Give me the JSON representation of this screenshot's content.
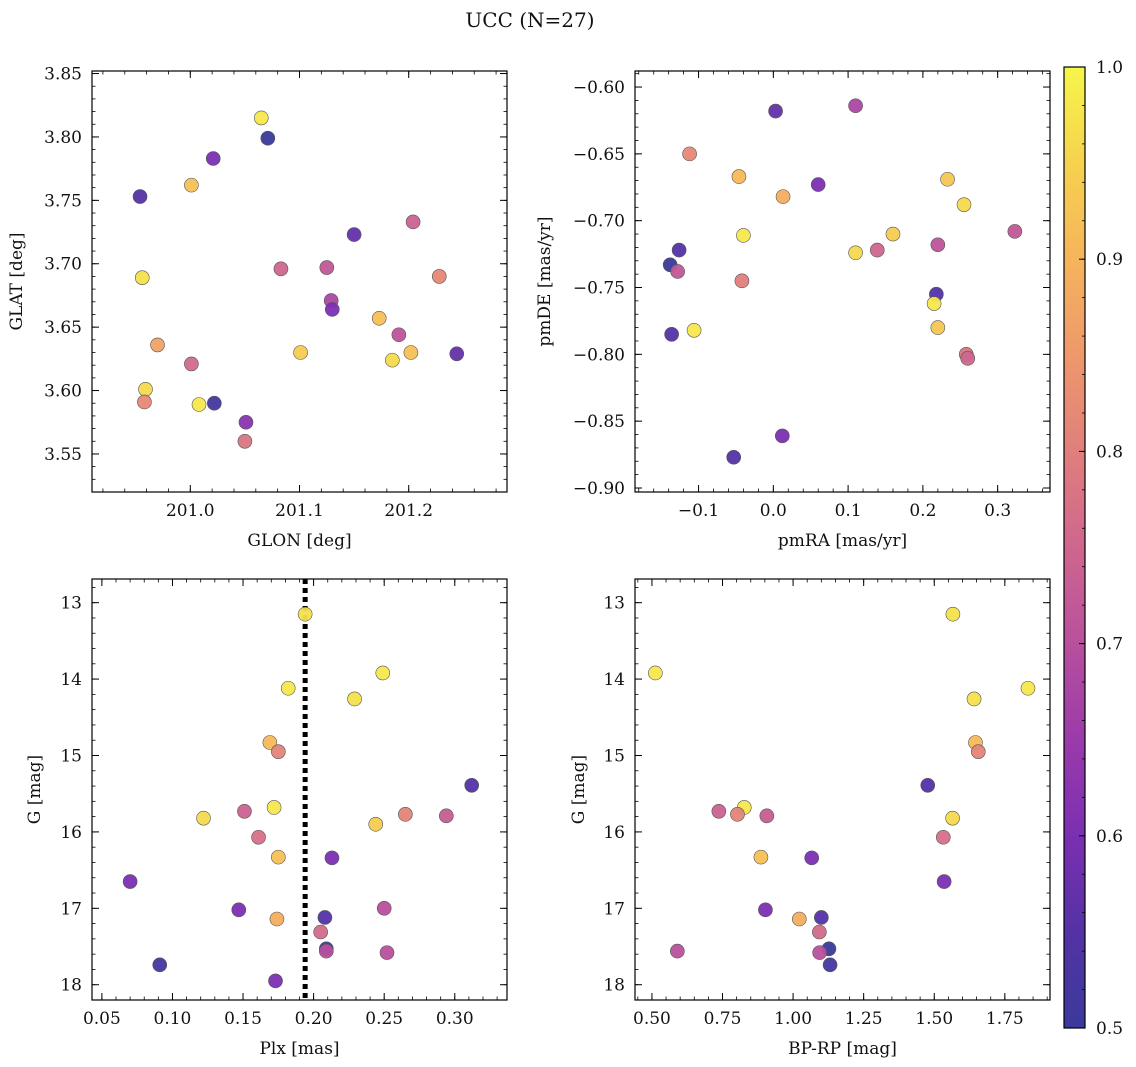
{
  "figure": {
    "title": "UCC (N=27)"
  },
  "colors": {
    "colormap": "plasma",
    "point_edge": "#555555",
    "plx_line": "#000000"
  },
  "chart_data": [
    {
      "type": "scatter",
      "xlabel": "GLON [deg]",
      "ylabel": "GLAT [deg]",
      "xlim": [
        200.91,
        201.29
      ],
      "ylim": [
        3.52,
        3.852
      ],
      "xticks": [
        201.0,
        201.1,
        201.2
      ],
      "xticklabels": [
        "201.0",
        "201.1",
        "201.2"
      ],
      "yticks": [
        3.55,
        3.6,
        3.65,
        3.7,
        3.75,
        3.8,
        3.85
      ],
      "yticklabels": [
        "3.55",
        "3.60",
        "3.65",
        "3.70",
        "3.75",
        "3.80",
        "3.85"
      ],
      "points": [
        {
          "x": 200.954,
          "y": 3.753,
          "c": 0.55
        },
        {
          "x": 201.021,
          "y": 3.783,
          "c": 0.6
        },
        {
          "x": 201.065,
          "y": 3.815,
          "c": 0.98
        },
        {
          "x": 201.071,
          "y": 3.799,
          "c": 0.5
        },
        {
          "x": 201.001,
          "y": 3.762,
          "c": 0.92
        },
        {
          "x": 200.956,
          "y": 3.689,
          "c": 0.97
        },
        {
          "x": 201.083,
          "y": 3.696,
          "c": 0.75
        },
        {
          "x": 201.125,
          "y": 3.697,
          "c": 0.72
        },
        {
          "x": 201.15,
          "y": 3.723,
          "c": 0.57
        },
        {
          "x": 201.204,
          "y": 3.733,
          "c": 0.74
        },
        {
          "x": 201.228,
          "y": 3.69,
          "c": 0.82
        },
        {
          "x": 201.129,
          "y": 3.671,
          "c": 0.68
        },
        {
          "x": 201.13,
          "y": 3.664,
          "c": 0.6
        },
        {
          "x": 201.173,
          "y": 3.657,
          "c": 0.92
        },
        {
          "x": 201.191,
          "y": 3.644,
          "c": 0.71
        },
        {
          "x": 200.97,
          "y": 3.636,
          "c": 0.87
        },
        {
          "x": 201.101,
          "y": 3.63,
          "c": 0.94
        },
        {
          "x": 201.202,
          "y": 3.63,
          "c": 0.92
        },
        {
          "x": 201.185,
          "y": 3.624,
          "c": 0.96
        },
        {
          "x": 201.244,
          "y": 3.629,
          "c": 0.57
        },
        {
          "x": 201.001,
          "y": 3.621,
          "c": 0.76
        },
        {
          "x": 200.959,
          "y": 3.601,
          "c": 0.96
        },
        {
          "x": 200.958,
          "y": 3.591,
          "c": 0.82
        },
        {
          "x": 201.008,
          "y": 3.589,
          "c": 0.98
        },
        {
          "x": 201.022,
          "y": 3.59,
          "c": 0.52
        },
        {
          "x": 201.051,
          "y": 3.575,
          "c": 0.62
        },
        {
          "x": 201.05,
          "y": 3.56,
          "c": 0.78
        }
      ]
    },
    {
      "type": "scatter",
      "xlabel": "pmRA [mas/yr]",
      "ylabel": "pmDE [mas/yr]",
      "xlim": [
        -0.185,
        0.37
      ],
      "ylim": [
        -0.903,
        -0.588
      ],
      "xticks": [
        -0.1,
        0.0,
        0.1,
        0.2,
        0.3
      ],
      "xticklabels": [
        "−0.1",
        "0.0",
        "0.1",
        "0.2",
        "0.3"
      ],
      "yticks": [
        -0.9,
        -0.85,
        -0.8,
        -0.75,
        -0.7,
        -0.65,
        -0.6
      ],
      "yticklabels": [
        "−0.90",
        "−0.85",
        "−0.80",
        "−0.75",
        "−0.70",
        "−0.65",
        "−0.60"
      ],
      "points": [
        {
          "x": 0.003,
          "y": -0.618,
          "c": 0.57
        },
        {
          "x": 0.11,
          "y": -0.614,
          "c": 0.68
        },
        {
          "x": -0.112,
          "y": -0.65,
          "c": 0.82
        },
        {
          "x": -0.046,
          "y": -0.667,
          "c": 0.91
        },
        {
          "x": 0.013,
          "y": -0.682,
          "c": 0.89
        },
        {
          "x": 0.06,
          "y": -0.673,
          "c": 0.6
        },
        {
          "x": 0.233,
          "y": -0.669,
          "c": 0.93
        },
        {
          "x": 0.255,
          "y": -0.688,
          "c": 0.96
        },
        {
          "x": -0.04,
          "y": -0.711,
          "c": 0.98
        },
        {
          "x": 0.16,
          "y": -0.71,
          "c": 0.94
        },
        {
          "x": 0.323,
          "y": -0.708,
          "c": 0.72
        },
        {
          "x": -0.126,
          "y": -0.722,
          "c": 0.55
        },
        {
          "x": 0.22,
          "y": -0.718,
          "c": 0.71
        },
        {
          "x": 0.11,
          "y": -0.724,
          "c": 0.96
        },
        {
          "x": 0.139,
          "y": -0.722,
          "c": 0.75
        },
        {
          "x": -0.138,
          "y": -0.733,
          "c": 0.5
        },
        {
          "x": -0.128,
          "y": -0.738,
          "c": 0.72
        },
        {
          "x": -0.042,
          "y": -0.745,
          "c": 0.8
        },
        {
          "x": 0.218,
          "y": -0.755,
          "c": 0.55
        },
        {
          "x": 0.215,
          "y": -0.762,
          "c": 0.98
        },
        {
          "x": -0.106,
          "y": -0.782,
          "c": 0.98
        },
        {
          "x": -0.136,
          "y": -0.785,
          "c": 0.55
        },
        {
          "x": 0.22,
          "y": -0.78,
          "c": 0.93
        },
        {
          "x": 0.258,
          "y": -0.8,
          "c": 0.78
        },
        {
          "x": 0.26,
          "y": -0.803,
          "c": 0.75
        },
        {
          "x": 0.012,
          "y": -0.861,
          "c": 0.6
        },
        {
          "x": -0.053,
          "y": -0.877,
          "c": 0.55
        }
      ]
    },
    {
      "type": "scatter",
      "xlabel": "Plx [mas]",
      "ylabel": "G [mag]",
      "xlim": [
        0.043,
        0.337
      ],
      "ylim": [
        18.2,
        12.69
      ],
      "y_inverted": true,
      "xticks": [
        0.05,
        0.1,
        0.15,
        0.2,
        0.25,
        0.3
      ],
      "xticklabels": [
        "0.05",
        "0.10",
        "0.15",
        "0.20",
        "0.25",
        "0.30"
      ],
      "yticks": [
        13,
        14,
        15,
        16,
        17,
        18
      ],
      "yticklabels": [
        "13",
        "14",
        "15",
        "16",
        "17",
        "18"
      ],
      "vline_x": 0.194,
      "points": [
        {
          "x": 0.194,
          "y": 13.15,
          "c": 0.97
        },
        {
          "x": 0.249,
          "y": 13.92,
          "c": 0.98
        },
        {
          "x": 0.182,
          "y": 14.12,
          "c": 0.98
        },
        {
          "x": 0.229,
          "y": 14.26,
          "c": 0.97
        },
        {
          "x": 0.169,
          "y": 14.83,
          "c": 0.91
        },
        {
          "x": 0.175,
          "y": 14.95,
          "c": 0.81
        },
        {
          "x": 0.312,
          "y": 15.39,
          "c": 0.55
        },
        {
          "x": 0.172,
          "y": 15.68,
          "c": 0.98
        },
        {
          "x": 0.151,
          "y": 15.73,
          "c": 0.74
        },
        {
          "x": 0.265,
          "y": 15.77,
          "c": 0.81
        },
        {
          "x": 0.294,
          "y": 15.79,
          "c": 0.73
        },
        {
          "x": 0.122,
          "y": 15.82,
          "c": 0.96
        },
        {
          "x": 0.244,
          "y": 15.9,
          "c": 0.94
        },
        {
          "x": 0.161,
          "y": 16.07,
          "c": 0.77
        },
        {
          "x": 0.175,
          "y": 16.33,
          "c": 0.92
        },
        {
          "x": 0.213,
          "y": 16.34,
          "c": 0.6
        },
        {
          "x": 0.07,
          "y": 16.65,
          "c": 0.6
        },
        {
          "x": 0.147,
          "y": 17.02,
          "c": 0.6
        },
        {
          "x": 0.25,
          "y": 17.0,
          "c": 0.7
        },
        {
          "x": 0.174,
          "y": 17.14,
          "c": 0.89
        },
        {
          "x": 0.208,
          "y": 17.12,
          "c": 0.55
        },
        {
          "x": 0.205,
          "y": 17.31,
          "c": 0.76
        },
        {
          "x": 0.209,
          "y": 17.53,
          "c": 0.5
        },
        {
          "x": 0.209,
          "y": 17.56,
          "c": 0.7
        },
        {
          "x": 0.252,
          "y": 17.58,
          "c": 0.7
        },
        {
          "x": 0.091,
          "y": 17.74,
          "c": 0.52
        },
        {
          "x": 0.173,
          "y": 17.95,
          "c": 0.6
        }
      ]
    },
    {
      "type": "scatter",
      "xlabel": "BP-RP [mag]",
      "ylabel": "G [mag]",
      "xlim": [
        0.44,
        1.91
      ],
      "ylim": [
        18.2,
        12.69
      ],
      "y_inverted": true,
      "xticks": [
        0.5,
        0.75,
        1.0,
        1.25,
        1.5,
        1.75
      ],
      "xticklabels": [
        "0.50",
        "0.75",
        "1.00",
        "1.25",
        "1.50",
        "1.75"
      ],
      "yticks": [
        13,
        14,
        15,
        16,
        17,
        18
      ],
      "yticklabels": [
        "13",
        "14",
        "15",
        "16",
        "17",
        "18"
      ],
      "points": [
        {
          "x": 1.566,
          "y": 13.15,
          "c": 0.97
        },
        {
          "x": 0.512,
          "y": 13.92,
          "c": 0.98
        },
        {
          "x": 1.832,
          "y": 14.12,
          "c": 0.98
        },
        {
          "x": 1.641,
          "y": 14.26,
          "c": 0.97
        },
        {
          "x": 1.646,
          "y": 14.83,
          "c": 0.91
        },
        {
          "x": 1.656,
          "y": 14.95,
          "c": 0.81
        },
        {
          "x": 1.477,
          "y": 15.39,
          "c": 0.55
        },
        {
          "x": 0.827,
          "y": 15.68,
          "c": 0.98
        },
        {
          "x": 0.737,
          "y": 15.73,
          "c": 0.74
        },
        {
          "x": 0.803,
          "y": 15.77,
          "c": 0.81
        },
        {
          "x": 0.907,
          "y": 15.79,
          "c": 0.73
        },
        {
          "x": 1.565,
          "y": 15.82,
          "c": 0.96
        },
        {
          "x": 1.532,
          "y": 16.07,
          "c": 0.77
        },
        {
          "x": 0.886,
          "y": 16.33,
          "c": 0.92
        },
        {
          "x": 1.066,
          "y": 16.34,
          "c": 0.6
        },
        {
          "x": 1.535,
          "y": 16.65,
          "c": 0.6
        },
        {
          "x": 0.902,
          "y": 17.02,
          "c": 0.6
        },
        {
          "x": 1.022,
          "y": 17.14,
          "c": 0.89
        },
        {
          "x": 1.1,
          "y": 17.12,
          "c": 0.55
        },
        {
          "x": 1.093,
          "y": 17.31,
          "c": 0.76
        },
        {
          "x": 1.127,
          "y": 17.53,
          "c": 0.5
        },
        {
          "x": 0.59,
          "y": 17.56,
          "c": 0.7
        },
        {
          "x": 1.094,
          "y": 17.58,
          "c": 0.7
        },
        {
          "x": 1.131,
          "y": 17.74,
          "c": 0.52
        }
      ]
    }
  ],
  "colorbar": {
    "min": 0.5,
    "max": 1.0,
    "ticks": [
      0.5,
      0.6,
      0.7,
      0.8,
      0.9,
      1.0
    ],
    "ticklabels": [
      "0.5",
      "0.6",
      "0.7",
      "0.8",
      "0.9",
      "1.0"
    ]
  }
}
